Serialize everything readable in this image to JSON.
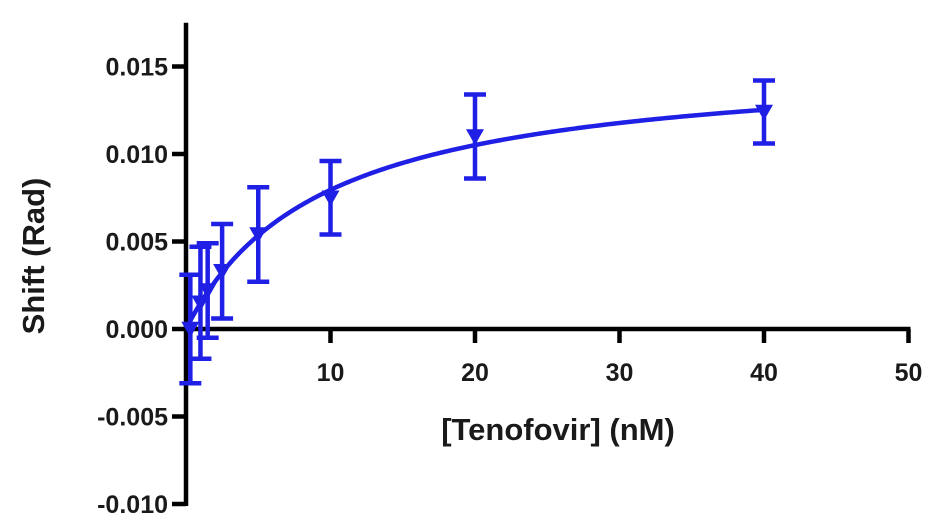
{
  "chart_data": {
    "type": "scatter",
    "xlabel": "[Tenofovir] (nM)",
    "ylabel": "Shift (Rad)",
    "xlim": [
      0,
      50
    ],
    "ylim": [
      -0.01,
      0.0175
    ],
    "x_ticks": [
      "10",
      "20",
      "30",
      "40",
      "50"
    ],
    "y_ticks": [
      "0.015",
      "0.010",
      "0.005",
      "0.000",
      "-0.005",
      "-0.010"
    ],
    "marker": "triangle-down",
    "color": "#1f1fe6",
    "grid": false,
    "legend": "none",
    "series": [
      {
        "points": [
          {
            "x": 0.3,
            "y": 0.0,
            "yerr": 0.0031
          },
          {
            "x": 1.0,
            "y": 0.0015,
            "yerr": 0.0032
          },
          {
            "x": 1.5,
            "y": 0.0022,
            "yerr": 0.0027
          },
          {
            "x": 2.5,
            "y": 0.0033,
            "yerr": 0.0027
          },
          {
            "x": 5.0,
            "y": 0.0054,
            "yerr": 0.0027
          },
          {
            "x": 10.0,
            "y": 0.0075,
            "yerr": 0.0021
          },
          {
            "x": 20.0,
            "y": 0.011,
            "yerr": 0.0024
          },
          {
            "x": 40.0,
            "y": 0.0124,
            "yerr": 0.0018
          }
        ],
        "fit": {
          "model": "one-site binding",
          "bmax": 0.0155,
          "kd": 9.5
        }
      }
    ]
  }
}
